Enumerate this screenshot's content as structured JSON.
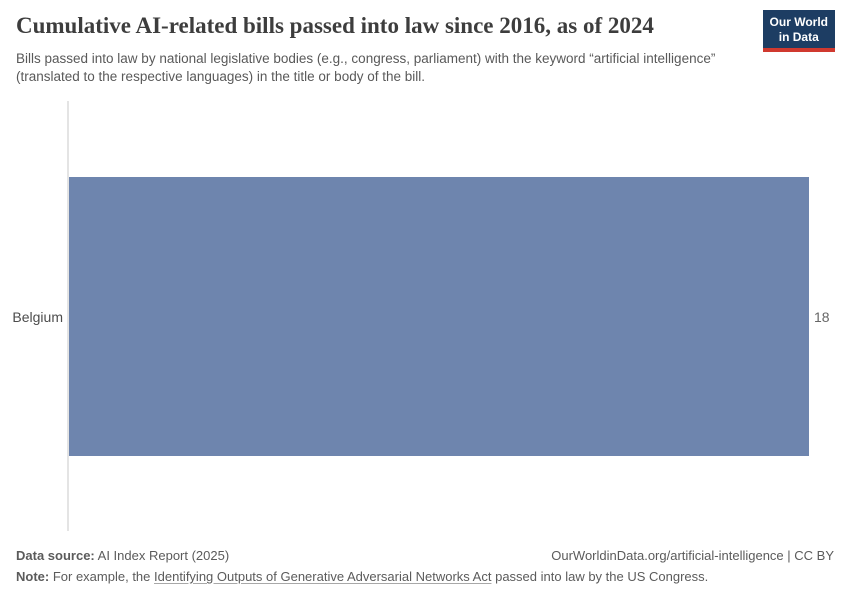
{
  "header": {
    "title": "Cumulative AI-related bills passed into law since 2016, as of 2024",
    "subtitle": "Bills passed into law by national legislative bodies (e.g., congress, parliament) with the keyword “artificial intelligence” (translated to the respective languages) in the title or body of the bill.",
    "logo": {
      "line1": "Our World",
      "line2": "in Data"
    }
  },
  "chart_data": {
    "type": "bar",
    "orientation": "horizontal",
    "title": "Cumulative AI-related bills passed into law since 2016, as of 2024",
    "categories": [
      "Belgium"
    ],
    "values": [
      18
    ],
    "value_labels": [
      "18"
    ],
    "xlabel": "",
    "ylabel": "",
    "xlim": [
      0,
      18
    ],
    "grid": false,
    "legend": "none",
    "bar_color": "#6e85ae"
  },
  "footer": {
    "data_source_label": "Data source:",
    "data_source_value": "AI Index Report (2025)",
    "credit": "OurWorldinData.org/artificial-intelligence | CC BY",
    "note_label": "Note:",
    "note_pre": "For example, the",
    "note_link": "Identifying Outputs of Generative Adversarial Networks Act",
    "note_post": "passed into law by the US Congress."
  },
  "colors": {
    "bar": "#6e85ae",
    "axis_line": "#e4e4e4",
    "logo_background": "#1d3d63",
    "logo_accent": "#d0392f"
  }
}
